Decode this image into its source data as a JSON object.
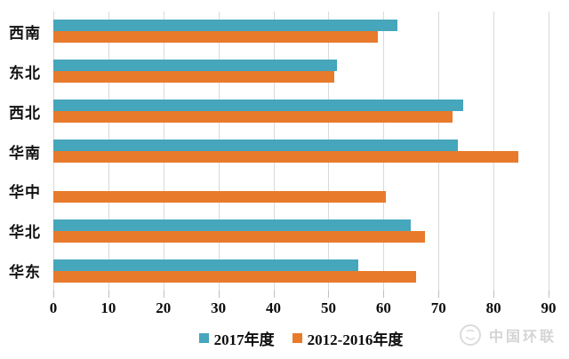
{
  "chart_data": {
    "type": "bar",
    "orientation": "horizontal",
    "title": "",
    "categories": [
      "西南",
      "东北",
      "西北",
      "华南",
      "华中",
      "华北",
      "华东"
    ],
    "series": [
      {
        "name": "2017年度",
        "color": "#45a6bc",
        "values": [
          62.5,
          51.5,
          74.5,
          73.5,
          null,
          65,
          55.5
        ]
      },
      {
        "name": "2012-2016年度",
        "color": "#e87a2b",
        "values": [
          59,
          51,
          72.5,
          84.5,
          60.5,
          67.5,
          66
        ]
      }
    ],
    "xlim": [
      0,
      90
    ],
    "xticks": [
      0,
      10,
      20,
      30,
      40,
      50,
      60,
      70,
      80,
      90
    ],
    "grid": "vertical-gridlines",
    "gridline_color": "#d9d9d9",
    "legend_position": "bottom"
  },
  "legend": {
    "items": [
      {
        "label": "2017年度",
        "color": "#45a6bc"
      },
      {
        "label": "2012-2016年度",
        "color": "#e87a2b"
      }
    ]
  },
  "watermark": {
    "text": "中国环联"
  }
}
